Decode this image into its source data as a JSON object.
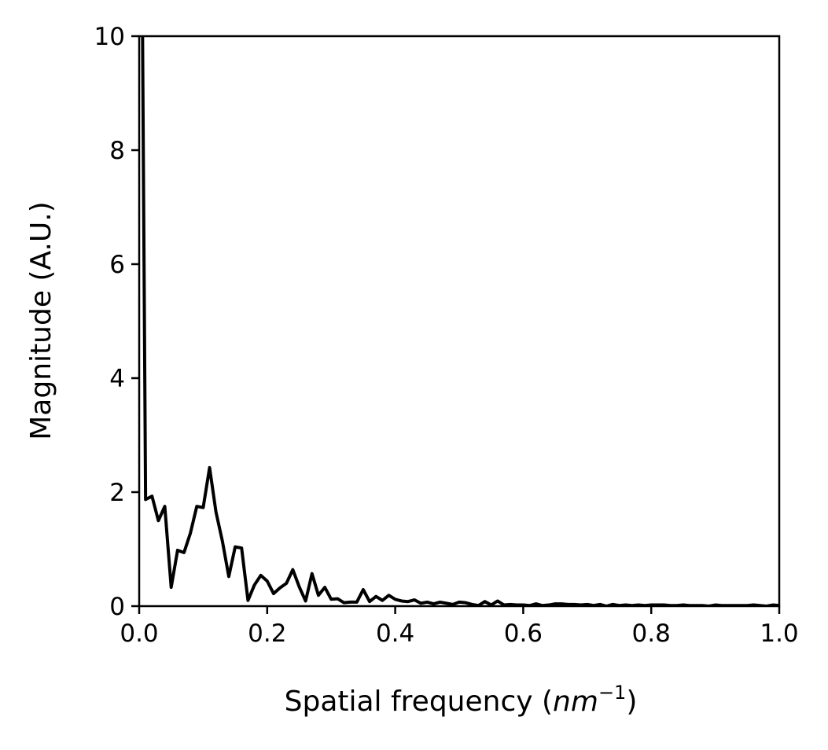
{
  "chart_data": {
    "type": "line",
    "title": "",
    "xlabel": "Spatial frequency (",
    "xlabel_unit_base": "nm",
    "xlabel_unit_exp": "−1",
    "xlabel_close": ")",
    "ylabel": "Magnitude (A.U.)",
    "xlim": [
      0.0,
      1.0
    ],
    "ylim": [
      0,
      10
    ],
    "xticks": [
      "0.0",
      "0.2",
      "0.4",
      "0.6",
      "0.8",
      "1.0"
    ],
    "yticks": [
      "0",
      "2",
      "4",
      "6",
      "8",
      "10"
    ],
    "grid": false,
    "line_color": "#000000",
    "series": [
      {
        "x": [
          0.0,
          0.005,
          0.01,
          0.02,
          0.03,
          0.04,
          0.05,
          0.06,
          0.07,
          0.08,
          0.09,
          0.1,
          0.11,
          0.12,
          0.13,
          0.14,
          0.15,
          0.16,
          0.17,
          0.18,
          0.19,
          0.2,
          0.21,
          0.22,
          0.23,
          0.24,
          0.25,
          0.26,
          0.27,
          0.28,
          0.29,
          0.3,
          0.31,
          0.32,
          0.33,
          0.34,
          0.35,
          0.36,
          0.37,
          0.38,
          0.39,
          0.4,
          0.41,
          0.42,
          0.43,
          0.44,
          0.45,
          0.46,
          0.47,
          0.48,
          0.49,
          0.5,
          0.51,
          0.52,
          0.53,
          0.54,
          0.55,
          0.56,
          0.57,
          0.58,
          0.59,
          0.6,
          0.61,
          0.62,
          0.63,
          0.64,
          0.65,
          0.66,
          0.67,
          0.68,
          0.69,
          0.7,
          0.71,
          0.72,
          0.73,
          0.74,
          0.75,
          0.76,
          0.77,
          0.78,
          0.79,
          0.8,
          0.81,
          0.82,
          0.83,
          0.84,
          0.85,
          0.86,
          0.87,
          0.88,
          0.89,
          0.9,
          0.91,
          0.92,
          0.93,
          0.94,
          0.95,
          0.96,
          0.97,
          0.98,
          0.99,
          1.0
        ],
        "y": [
          10.5,
          10.5,
          1.87,
          1.93,
          1.5,
          1.75,
          0.33,
          0.98,
          0.94,
          1.28,
          1.75,
          1.73,
          2.43,
          1.65,
          1.14,
          0.52,
          1.04,
          1.02,
          0.1,
          0.37,
          0.54,
          0.44,
          0.22,
          0.32,
          0.4,
          0.64,
          0.34,
          0.09,
          0.57,
          0.19,
          0.33,
          0.12,
          0.13,
          0.06,
          0.07,
          0.07,
          0.29,
          0.08,
          0.17,
          0.1,
          0.19,
          0.12,
          0.09,
          0.08,
          0.11,
          0.05,
          0.07,
          0.04,
          0.07,
          0.05,
          0.03,
          0.07,
          0.06,
          0.03,
          0.01,
          0.08,
          0.02,
          0.09,
          0.02,
          0.03,
          0.02,
          0.02,
          0.01,
          0.04,
          0.01,
          0.02,
          0.04,
          0.04,
          0.03,
          0.03,
          0.02,
          0.03,
          0.01,
          0.03,
          0.0,
          0.03,
          0.01,
          0.02,
          0.01,
          0.02,
          0.01,
          0.02,
          0.02,
          0.02,
          0.01,
          0.01,
          0.02,
          0.01,
          0.01,
          0.01,
          0.0,
          0.02,
          0.01,
          0.01,
          0.01,
          0.01,
          0.01,
          0.02,
          0.01,
          0.0,
          0.02,
          0.01
        ]
      }
    ]
  }
}
